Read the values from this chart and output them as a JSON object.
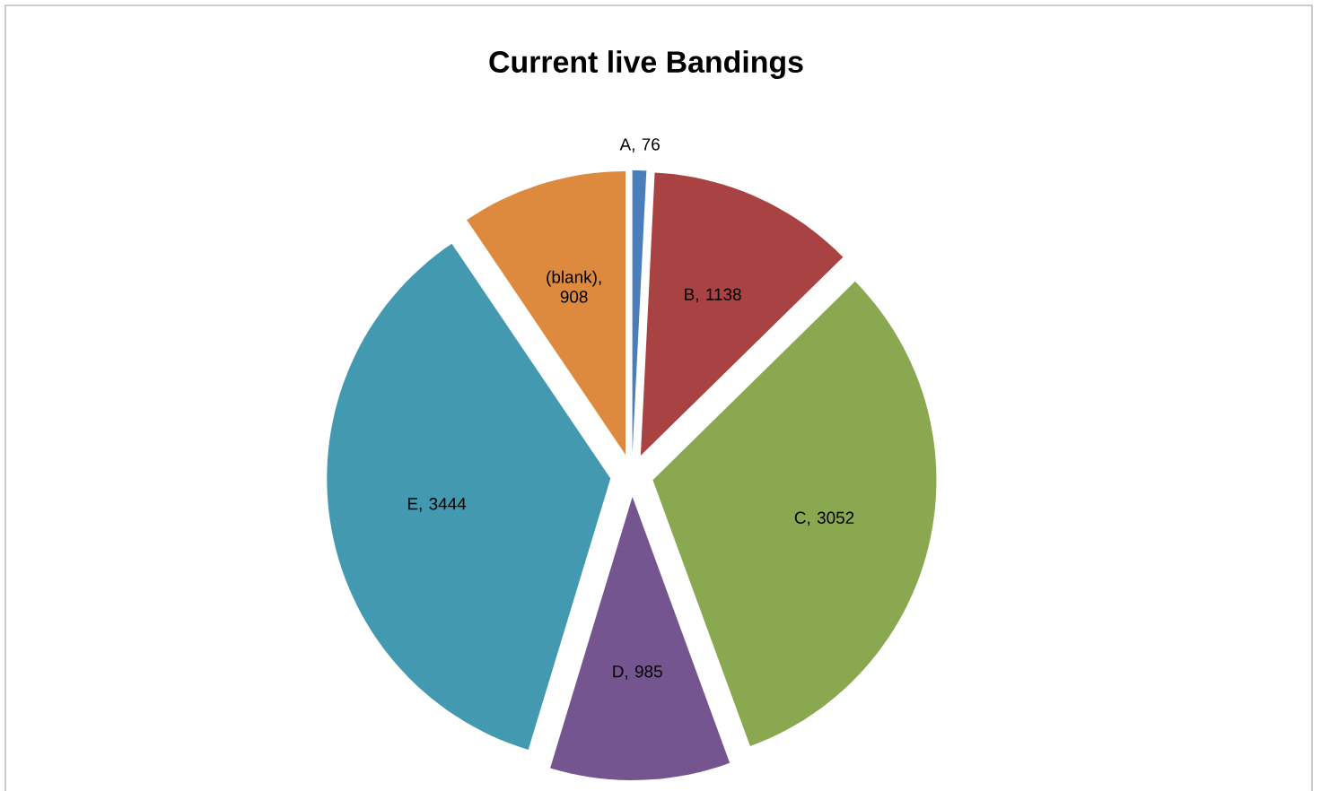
{
  "chart_data": {
    "type": "pie",
    "title": "Current live Bandings",
    "categories": [
      "A",
      "B",
      "C",
      "D",
      "E",
      "(blank)"
    ],
    "values": [
      76,
      1138,
      3052,
      985,
      3444,
      908
    ],
    "value_labels": [
      ", 76",
      ", 1138",
      ", 3052",
      ", 985",
      ", 3444",
      ", 908"
    ],
    "colors": [
      "#4a7ebb",
      "#a94343",
      "#8aa84f",
      "#745590",
      "#4299b0",
      "#dd8a3e"
    ],
    "legend": false
  }
}
